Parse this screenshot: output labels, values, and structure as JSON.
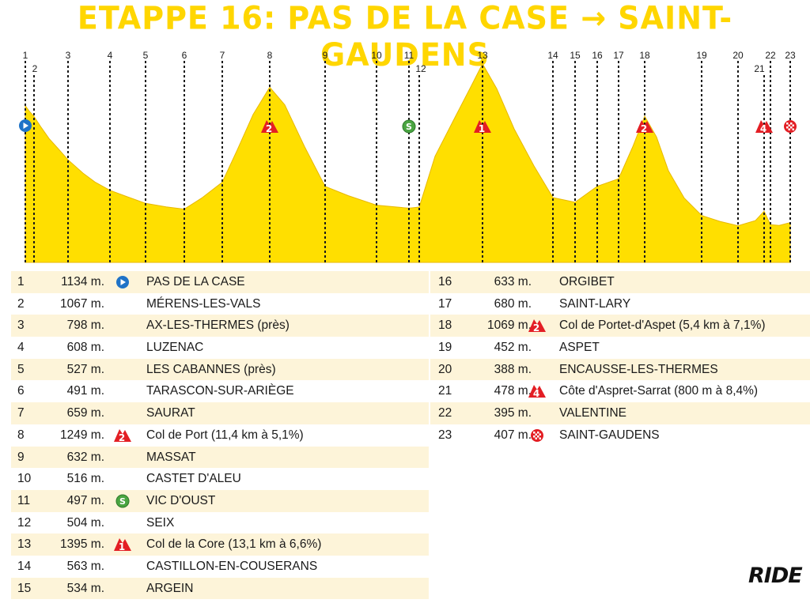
{
  "title": "ETAPPE 16: PAS DE LA CASE → SAINT-GAUDENS",
  "logo": "RIDE",
  "colors": {
    "profile_fill": "#ffdf00",
    "profile_line": "#e8b800",
    "title": "#ffd600",
    "row_shade": "#fdf4d9",
    "climb_marker": "#e31e24",
    "sprint_marker": "#4aa541",
    "start_marker": "#1f73c7",
    "finish_marker": "#e31e24"
  },
  "chart_data": {
    "type": "area",
    "title": "ETAPPE 16: PAS DE LA CASE → SAINT-GAUDENS",
    "unit": "m.",
    "points": [
      {
        "n": 1,
        "alt": 1134,
        "marker": "start",
        "name": "PAS DE LA CASE"
      },
      {
        "n": 2,
        "alt": 1067,
        "marker": "",
        "name": "MÉRENS-LES-VALS"
      },
      {
        "n": 3,
        "alt": 798,
        "marker": "",
        "name": "AX-LES-THERMES (près)"
      },
      {
        "n": 4,
        "alt": 608,
        "marker": "",
        "name": "LUZENAC"
      },
      {
        "n": 5,
        "alt": 527,
        "marker": "",
        "name": "LES CABANNES (près)"
      },
      {
        "n": 6,
        "alt": 491,
        "marker": "",
        "name": "TARASCON-SUR-ARIÈGE"
      },
      {
        "n": 7,
        "alt": 659,
        "marker": "",
        "name": "SAURAT"
      },
      {
        "n": 8,
        "alt": 1249,
        "marker": "climb-2",
        "name": "Col de Port (11,4 km à 5,1%)"
      },
      {
        "n": 9,
        "alt": 632,
        "marker": "",
        "name": "MASSAT"
      },
      {
        "n": 10,
        "alt": 516,
        "marker": "",
        "name": "CASTET D'ALEU"
      },
      {
        "n": 11,
        "alt": 497,
        "marker": "sprint",
        "name": "VIC D'OUST"
      },
      {
        "n": 12,
        "alt": 504,
        "marker": "",
        "name": "SEIX"
      },
      {
        "n": 13,
        "alt": 1395,
        "marker": "climb-1",
        "name": "Col de la Core (13,1 km à 6,6%)"
      },
      {
        "n": 14,
        "alt": 563,
        "marker": "",
        "name": "CASTILLON-EN-COUSERANS"
      },
      {
        "n": 15,
        "alt": 534,
        "marker": "",
        "name": "ARGEIN"
      },
      {
        "n": 16,
        "alt": 633,
        "marker": "",
        "name": "ORGIBET"
      },
      {
        "n": 17,
        "alt": 680,
        "marker": "",
        "name": "SAINT-LARY"
      },
      {
        "n": 18,
        "alt": 1069,
        "marker": "climb-2",
        "name": "Col de Portet-d'Aspet (5,4 km à 7,1%)"
      },
      {
        "n": 19,
        "alt": 452,
        "marker": "",
        "name": "ASPET"
      },
      {
        "n": 20,
        "alt": 388,
        "marker": "",
        "name": "ENCAUSSE-LES-THERMES"
      },
      {
        "n": 21,
        "alt": 478,
        "marker": "climb-4",
        "name": "Côte d'Aspret-Sarrat (800 m à 8,4%)"
      },
      {
        "n": 22,
        "alt": 395,
        "marker": "",
        "name": "VALENTINE"
      },
      {
        "n": 23,
        "alt": 407,
        "marker": "finish",
        "name": "SAINT-GAUDENS"
      }
    ]
  }
}
